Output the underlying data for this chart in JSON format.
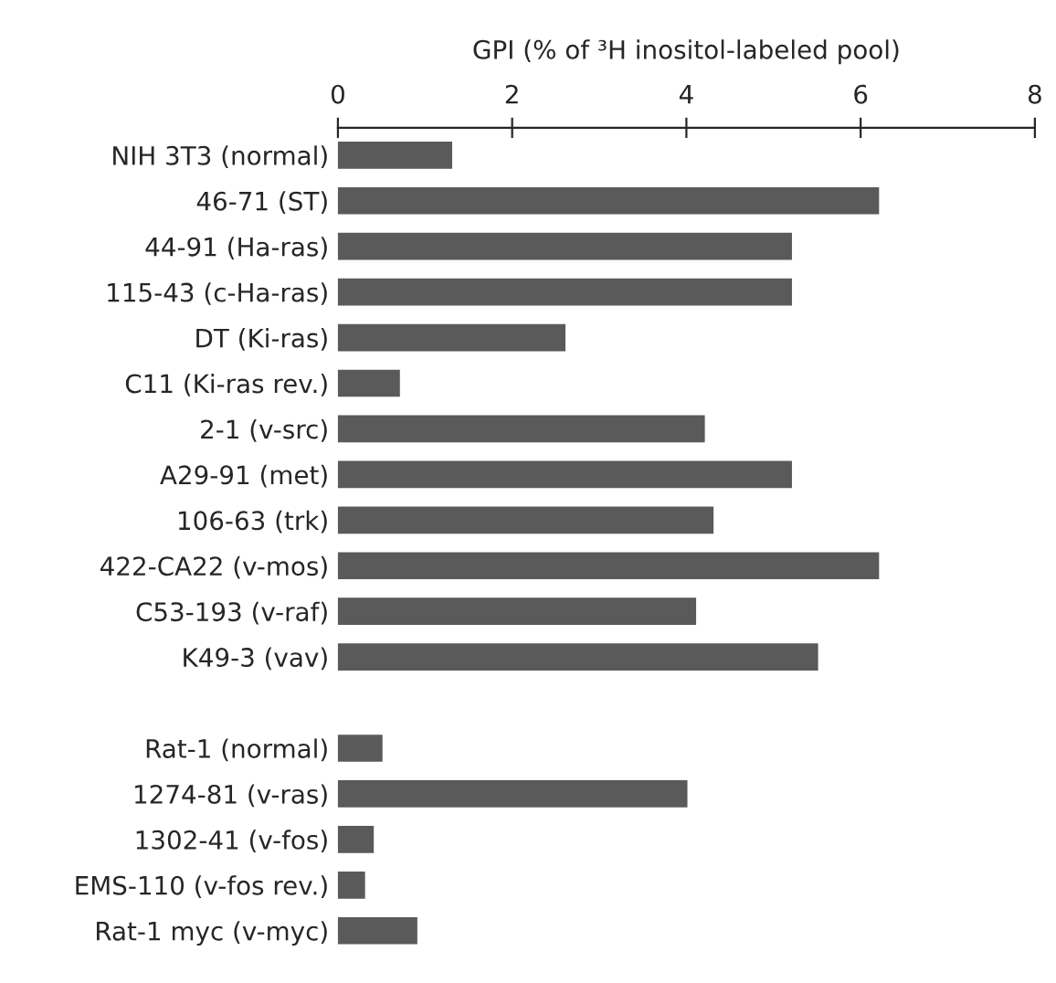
{
  "chart_data": {
    "type": "bar",
    "orientation": "horizontal",
    "xlabel": "GPI (% of ³H inositol-labeled pool)",
    "categories": [
      "NIH 3T3 (normal)",
      "46-71 (ST)",
      "44-91 (Ha-ras)",
      "115-43 (c-Ha-ras)",
      "DT (Ki-ras)",
      "C11 (Ki-ras rev.)",
      "2-1 (v-src)",
      "A29-91 (met)",
      "106-63 (trk)",
      "422-CA22 (v-mos)",
      "C53-193 (v-raf)",
      "K49-3 (vav)",
      null,
      "Rat-1 (normal)",
      "1274-81 (v-ras)",
      "1302-41 (v-fos)",
      "EMS-110 (v-fos rev.)",
      "Rat-1 myc (v-myc)"
    ],
    "values": [
      1.3,
      6.2,
      5.2,
      5.2,
      2.6,
      0.7,
      4.2,
      5.2,
      4.3,
      6.2,
      4.1,
      5.5,
      null,
      0.5,
      4.0,
      0.4,
      0.3,
      0.9
    ],
    "color": "#5a5a5a",
    "xlim": [
      0,
      8
    ],
    "xticks": [
      0,
      2,
      4,
      6,
      8
    ],
    "grid": false
  }
}
